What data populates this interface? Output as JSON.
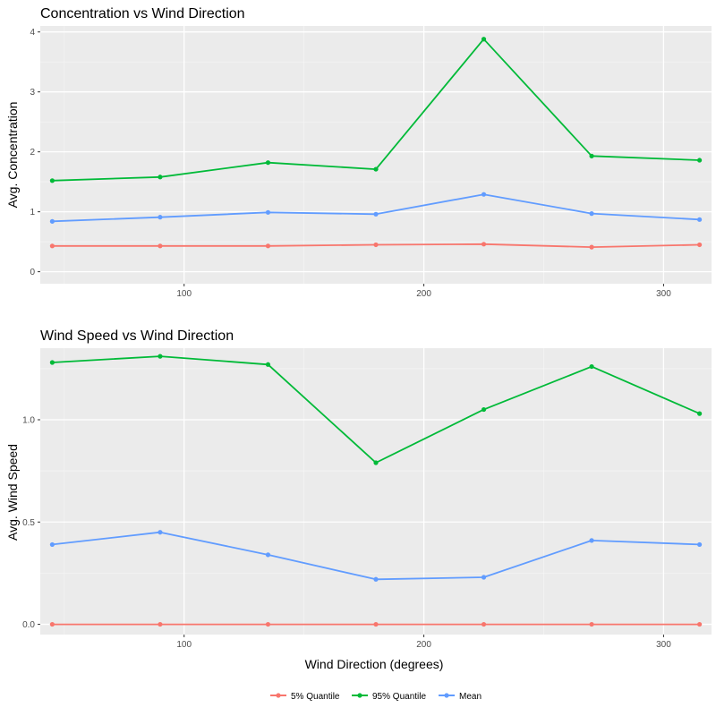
{
  "chart_data": [
    {
      "type": "line",
      "title": "Concentration vs Wind Direction",
      "xlabel": "",
      "ylabel": "Avg. Concentration",
      "xlim": [
        40,
        320
      ],
      "ylim": [
        -0.2,
        4.1
      ],
      "xticks": [
        100,
        200,
        300
      ],
      "xtick_labels": [
        "100",
        "200",
        "300"
      ],
      "yticks": [
        0,
        1,
        2,
        3,
        4
      ],
      "ytick_labels": [
        "0",
        "1",
        "2",
        "3",
        "4"
      ],
      "grid": true,
      "x": [
        45,
        90,
        135,
        180,
        225,
        270,
        315
      ],
      "series": [
        {
          "name": "5% Quantile",
          "color": "#F8766D",
          "values": [
            0.43,
            0.43,
            0.43,
            0.45,
            0.46,
            0.41,
            0.45
          ]
        },
        {
          "name": "95% Quantile",
          "color": "#00BA38",
          "values": [
            1.52,
            1.58,
            1.82,
            1.71,
            3.88,
            1.93,
            1.86
          ]
        },
        {
          "name": "Mean",
          "color": "#619CFF",
          "values": [
            0.84,
            0.91,
            0.99,
            0.96,
            1.29,
            0.97,
            0.87
          ]
        }
      ]
    },
    {
      "type": "line",
      "title": "Wind Speed vs Wind Direction",
      "xlabel": "Wind Direction (degrees)",
      "ylabel": "Avg. Wind Speed",
      "xlim": [
        40,
        320
      ],
      "ylim": [
        -0.05,
        1.35
      ],
      "xticks": [
        100,
        200,
        300
      ],
      "xtick_labels": [
        "100",
        "200",
        "300"
      ],
      "yticks": [
        0.0,
        0.5,
        1.0
      ],
      "ytick_labels": [
        "0.0",
        "0.5",
        "1.0"
      ],
      "grid": true,
      "x": [
        45,
        90,
        135,
        180,
        225,
        270,
        315
      ],
      "series": [
        {
          "name": "5% Quantile",
          "color": "#F8766D",
          "values": [
            0.0,
            0.0,
            0.0,
            0.0,
            0.0,
            0.0,
            0.0
          ]
        },
        {
          "name": "95% Quantile",
          "color": "#00BA38",
          "values": [
            1.28,
            1.31,
            1.27,
            0.79,
            1.05,
            1.26,
            1.03
          ]
        },
        {
          "name": "Mean",
          "color": "#619CFF",
          "values": [
            0.39,
            0.45,
            0.34,
            0.22,
            0.23,
            0.41,
            0.39
          ]
        }
      ]
    }
  ],
  "legend": {
    "position": "bottom",
    "items": [
      {
        "label": "5% Quantile",
        "color": "#F8766D"
      },
      {
        "label": "95% Quantile",
        "color": "#00BA38"
      },
      {
        "label": "Mean",
        "color": "#619CFF"
      }
    ]
  },
  "style": {
    "panel_bg": "#EBEBEB",
    "grid_major": "#FFFFFF",
    "grid_minor": "#F5F5F5",
    "tick_color": "#333333"
  }
}
